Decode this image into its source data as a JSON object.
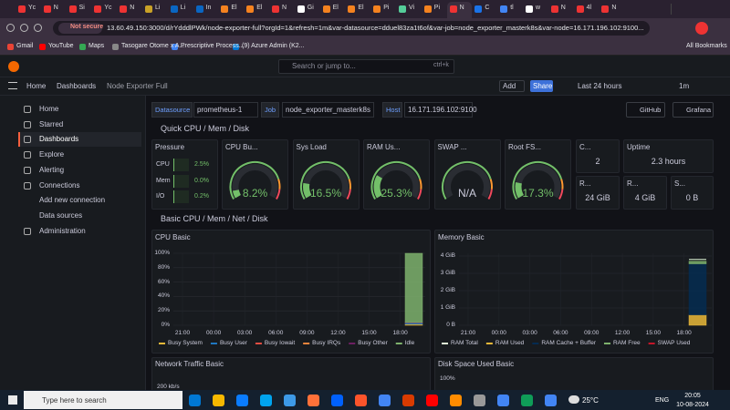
{
  "browser": {
    "tabs": [
      "Yc",
      "N",
      "Si",
      "Yc",
      "N",
      "Li",
      "Li",
      "In",
      "El",
      "El",
      "N",
      "Gi",
      "El",
      "El",
      "Pi",
      "Vi",
      "Pi",
      "N",
      "C",
      "tl",
      "w",
      "N",
      "4l",
      "N"
    ],
    "security": "Not secure",
    "url": "13.60.49.150:3000/d/rYdddlPWk/node-exporter-full?orgId=1&refresh=1m&var-datasource=dduel83za1t6of&var-job=node_exporter_masterk8s&var-node=16.171.196.102:9100...",
    "bookmarks": [
      "Gmail",
      "YouTube",
      "Maps",
      "Tasogare Otome x A...",
      "Prescriptive Process...",
      "(9) Azure Admin (K2..."
    ],
    "all_bookmarks": "All Bookmarks"
  },
  "grafana": {
    "search": "Search or jump to...",
    "shortcut": "ctrl+k",
    "breadcrumbs": [
      "Home",
      "Dashboards",
      "Node Exporter Full"
    ],
    "add": "Add",
    "share": "Share",
    "time_range": "Last 24 hours",
    "refresh": "1m",
    "nav": [
      {
        "label": "Home"
      },
      {
        "label": "Starred"
      },
      {
        "label": "Dashboards",
        "active": true
      },
      {
        "label": "Explore"
      },
      {
        "label": "Alerting"
      },
      {
        "label": "Connections",
        "children": [
          "Add new connection",
          "Data sources"
        ]
      },
      {
        "label": "Administration"
      }
    ],
    "variables": [
      {
        "label": "Datasource",
        "value": "prometheus-1"
      },
      {
        "label": "Job",
        "value": "node_exporter_masterk8s"
      },
      {
        "label": "Host",
        "value": "16.171.196.102:9100"
      }
    ],
    "links": [
      "GitHub",
      "Grafana"
    ],
    "rows": [
      "Quick CPU / Mem / Disk",
      "Basic CPU / Mem / Net / Disk"
    ],
    "pressure": {
      "title": "Pressure",
      "items": [
        {
          "label": "CPU",
          "value": 2.5,
          "value_label": "2.5%"
        },
        {
          "label": "Mem",
          "value": 0.0,
          "value_label": "0.0%"
        },
        {
          "label": "I/O",
          "value": 0.2,
          "value_label": "0.2%"
        }
      ]
    },
    "gauge_thresholds": [
      {
        "value": 0,
        "color": "#73bf69"
      },
      {
        "value": 80,
        "color": "#ff9830"
      },
      {
        "value": 90,
        "color": "#f2495c"
      }
    ],
    "gauges": [
      {
        "title": "CPU Bu...",
        "value": 8.2,
        "value_label": "8.2%"
      },
      {
        "title": "Sys Load",
        "value": 16.5,
        "value_label": "16.5%"
      },
      {
        "title": "RAM Us...",
        "value": 25.3,
        "value_label": "25.3%"
      },
      {
        "title": "SWAP ...",
        "value": null,
        "value_label": "N/A"
      },
      {
        "title": "Root FS...",
        "value": 17.3,
        "value_label": "17.3%"
      }
    ],
    "stats": [
      {
        "title": "C...",
        "value": 2
      },
      {
        "title": "Uptime",
        "value": 2.3,
        "value_label": "2.3 hours"
      },
      {
        "title": "R...",
        "value": 24,
        "value_label": "24 GiB"
      },
      {
        "title": "R...",
        "value": 4,
        "value_label": "4 GiB"
      },
      {
        "title": "S...",
        "value": 0,
        "value_label": "0 B"
      }
    ],
    "charts": [
      {
        "type": "stacked-area",
        "title": "CPU Basic",
        "ylim": [
          0,
          100
        ],
        "yticks": [
          {
            "value": 0,
            "label": "0%"
          },
          {
            "value": 20,
            "label": "20%"
          },
          {
            "value": 40,
            "label": "40%"
          },
          {
            "value": 60,
            "label": "60%"
          },
          {
            "value": 80,
            "label": "80%"
          },
          {
            "value": 100,
            "label": "100%"
          }
        ],
        "xticks": [
          "21:00",
          "00:00",
          "03:00",
          "06:00",
          "09:00",
          "12:00",
          "15:00",
          "18:00"
        ],
        "grid": true,
        "series": [
          {
            "name": "Busy System",
            "color": "#eab839",
            "value": 1.5
          },
          {
            "name": "Busy User",
            "color": "#1f78c1",
            "value": 2
          },
          {
            "name": "Busy Iowait",
            "color": "#e24d42",
            "value": 0.3
          },
          {
            "name": "Busy IRQs",
            "color": "#ef843c",
            "value": 0.1
          },
          {
            "name": "Busy Other",
            "color": "#6d1f62",
            "value": 0.3
          },
          {
            "name": "Idle",
            "color": "#7eb26d",
            "value": 95.8
          }
        ]
      },
      {
        "type": "stacked-area",
        "title": "Memory Basic",
        "ylim": [
          0,
          4.2
        ],
        "yticks": [
          {
            "value": 0,
            "label": "0 B"
          },
          {
            "value": 1,
            "label": "1 GiB"
          },
          {
            "value": 2,
            "label": "2 GiB"
          },
          {
            "value": 3,
            "label": "3 GiB"
          },
          {
            "value": 4,
            "label": "4 GiB"
          }
        ],
        "xticks": [
          "21:00",
          "00:00",
          "03:00",
          "06:00",
          "09:00",
          "12:00",
          "15:00",
          "18:00"
        ],
        "grid": true,
        "series": [
          {
            "name": "RAM Total",
            "color": "#e0f9d7",
            "value": 3.8,
            "line": true
          },
          {
            "name": "RAM Used",
            "color": "#eab839",
            "value": 0.6
          },
          {
            "name": "RAM Cache + Buffer",
            "color": "#052b51",
            "value": 2.95
          },
          {
            "name": "RAM Free",
            "color": "#7eb26d",
            "value": 0.15
          },
          {
            "name": "SWAP Used",
            "color": "#c4162a",
            "value": 0
          }
        ]
      }
    ],
    "more_panels": [
      {
        "title": "Network Traffic Basic",
        "tick": "200 kb/s"
      },
      {
        "title": "Disk Space Used Basic",
        "tick": "100%"
      }
    ]
  },
  "taskbar": {
    "search": "Type here to search",
    "weather": "25°C",
    "lang": "ENG",
    "time": "20:05",
    "date": "10-08-2024"
  }
}
